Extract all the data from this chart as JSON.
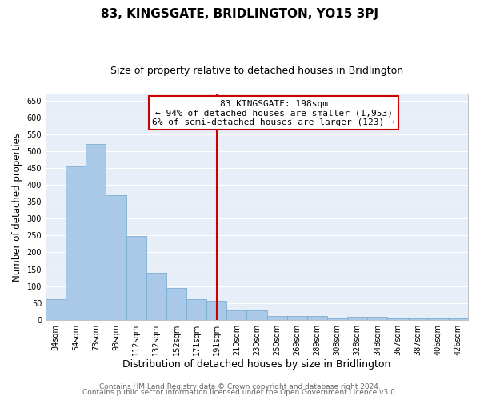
{
  "title": "83, KINGSGATE, BRIDLINGTON, YO15 3PJ",
  "subtitle": "Size of property relative to detached houses in Bridlington",
  "xlabel": "Distribution of detached houses by size in Bridlington",
  "ylabel": "Number of detached properties",
  "bar_labels": [
    "34sqm",
    "54sqm",
    "73sqm",
    "93sqm",
    "112sqm",
    "132sqm",
    "152sqm",
    "171sqm",
    "191sqm",
    "210sqm",
    "230sqm",
    "250sqm",
    "269sqm",
    "289sqm",
    "308sqm",
    "328sqm",
    "348sqm",
    "367sqm",
    "387sqm",
    "406sqm",
    "426sqm"
  ],
  "bar_values": [
    62,
    455,
    522,
    370,
    248,
    140,
    94,
    62,
    57,
    28,
    28,
    10,
    10,
    12,
    5,
    8,
    8,
    5,
    5,
    3,
    3
  ],
  "bar_color": "#aac9e8",
  "bar_edge_color": "#7aaed0",
  "vline_x_idx": 8,
  "vline_color": "#cc0000",
  "annotation_title": "83 KINGSGATE: 198sqm",
  "annotation_line1": "← 94% of detached houses are smaller (1,953)",
  "annotation_line2": "6% of semi-detached houses are larger (123) →",
  "annotation_box_color": "#ffffff",
  "annotation_box_edge": "#cc0000",
  "ylim": [
    0,
    670
  ],
  "yticks": [
    0,
    50,
    100,
    150,
    200,
    250,
    300,
    350,
    400,
    450,
    500,
    550,
    600,
    650
  ],
  "footer1": "Contains HM Land Registry data © Crown copyright and database right 2024.",
  "footer2": "Contains public sector information licensed under the Open Government Licence v3.0.",
  "plot_bg_color": "#e8eef8",
  "fig_bg_color": "#ffffff",
  "grid_color": "#ffffff",
  "title_fontsize": 11,
  "subtitle_fontsize": 9,
  "xlabel_fontsize": 9,
  "ylabel_fontsize": 8.5,
  "tick_fontsize": 7,
  "annotation_fontsize": 8,
  "footer_fontsize": 6.5
}
